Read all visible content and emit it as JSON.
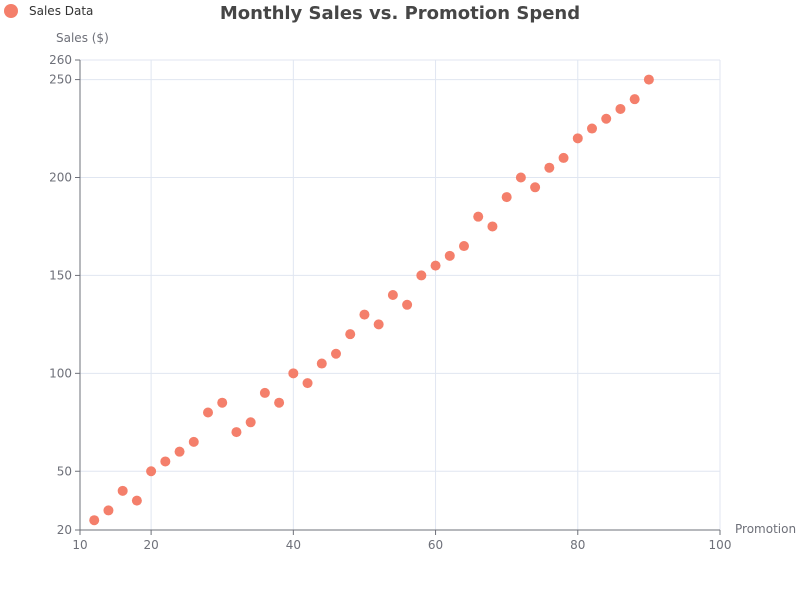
{
  "chart_data": {
    "type": "scatter",
    "title": "Monthly Sales vs. Promotion Spend",
    "xlabel": "Promotion",
    "ylabel": "Sales ($)",
    "xlim": [
      10,
      100
    ],
    "ylim": [
      20,
      260
    ],
    "x_ticks": [
      10,
      20,
      40,
      60,
      80,
      100
    ],
    "y_ticks": [
      20,
      50,
      100,
      150,
      200,
      250,
      260
    ],
    "grid": true,
    "legend_position": "top-left",
    "series": [
      {
        "name": "Sales Data",
        "color": "#f47f6b",
        "points": [
          [
            12,
            25
          ],
          [
            14,
            30
          ],
          [
            16,
            40
          ],
          [
            18,
            35
          ],
          [
            20,
            50
          ],
          [
            22,
            55
          ],
          [
            24,
            60
          ],
          [
            26,
            65
          ],
          [
            28,
            80
          ],
          [
            30,
            85
          ],
          [
            32,
            70
          ],
          [
            34,
            75
          ],
          [
            36,
            90
          ],
          [
            38,
            85
          ],
          [
            40,
            100
          ],
          [
            42,
            95
          ],
          [
            44,
            105
          ],
          [
            46,
            110
          ],
          [
            48,
            120
          ],
          [
            50,
            130
          ],
          [
            52,
            125
          ],
          [
            54,
            140
          ],
          [
            56,
            135
          ],
          [
            58,
            150
          ],
          [
            60,
            155
          ],
          [
            62,
            160
          ],
          [
            64,
            165
          ],
          [
            66,
            180
          ],
          [
            68,
            175
          ],
          [
            70,
            190
          ],
          [
            72,
            200
          ],
          [
            74,
            195
          ],
          [
            76,
            205
          ],
          [
            78,
            210
          ],
          [
            80,
            220
          ],
          [
            82,
            225
          ],
          [
            84,
            230
          ],
          [
            86,
            235
          ],
          [
            88,
            240
          ],
          [
            90,
            250
          ]
        ]
      }
    ]
  }
}
